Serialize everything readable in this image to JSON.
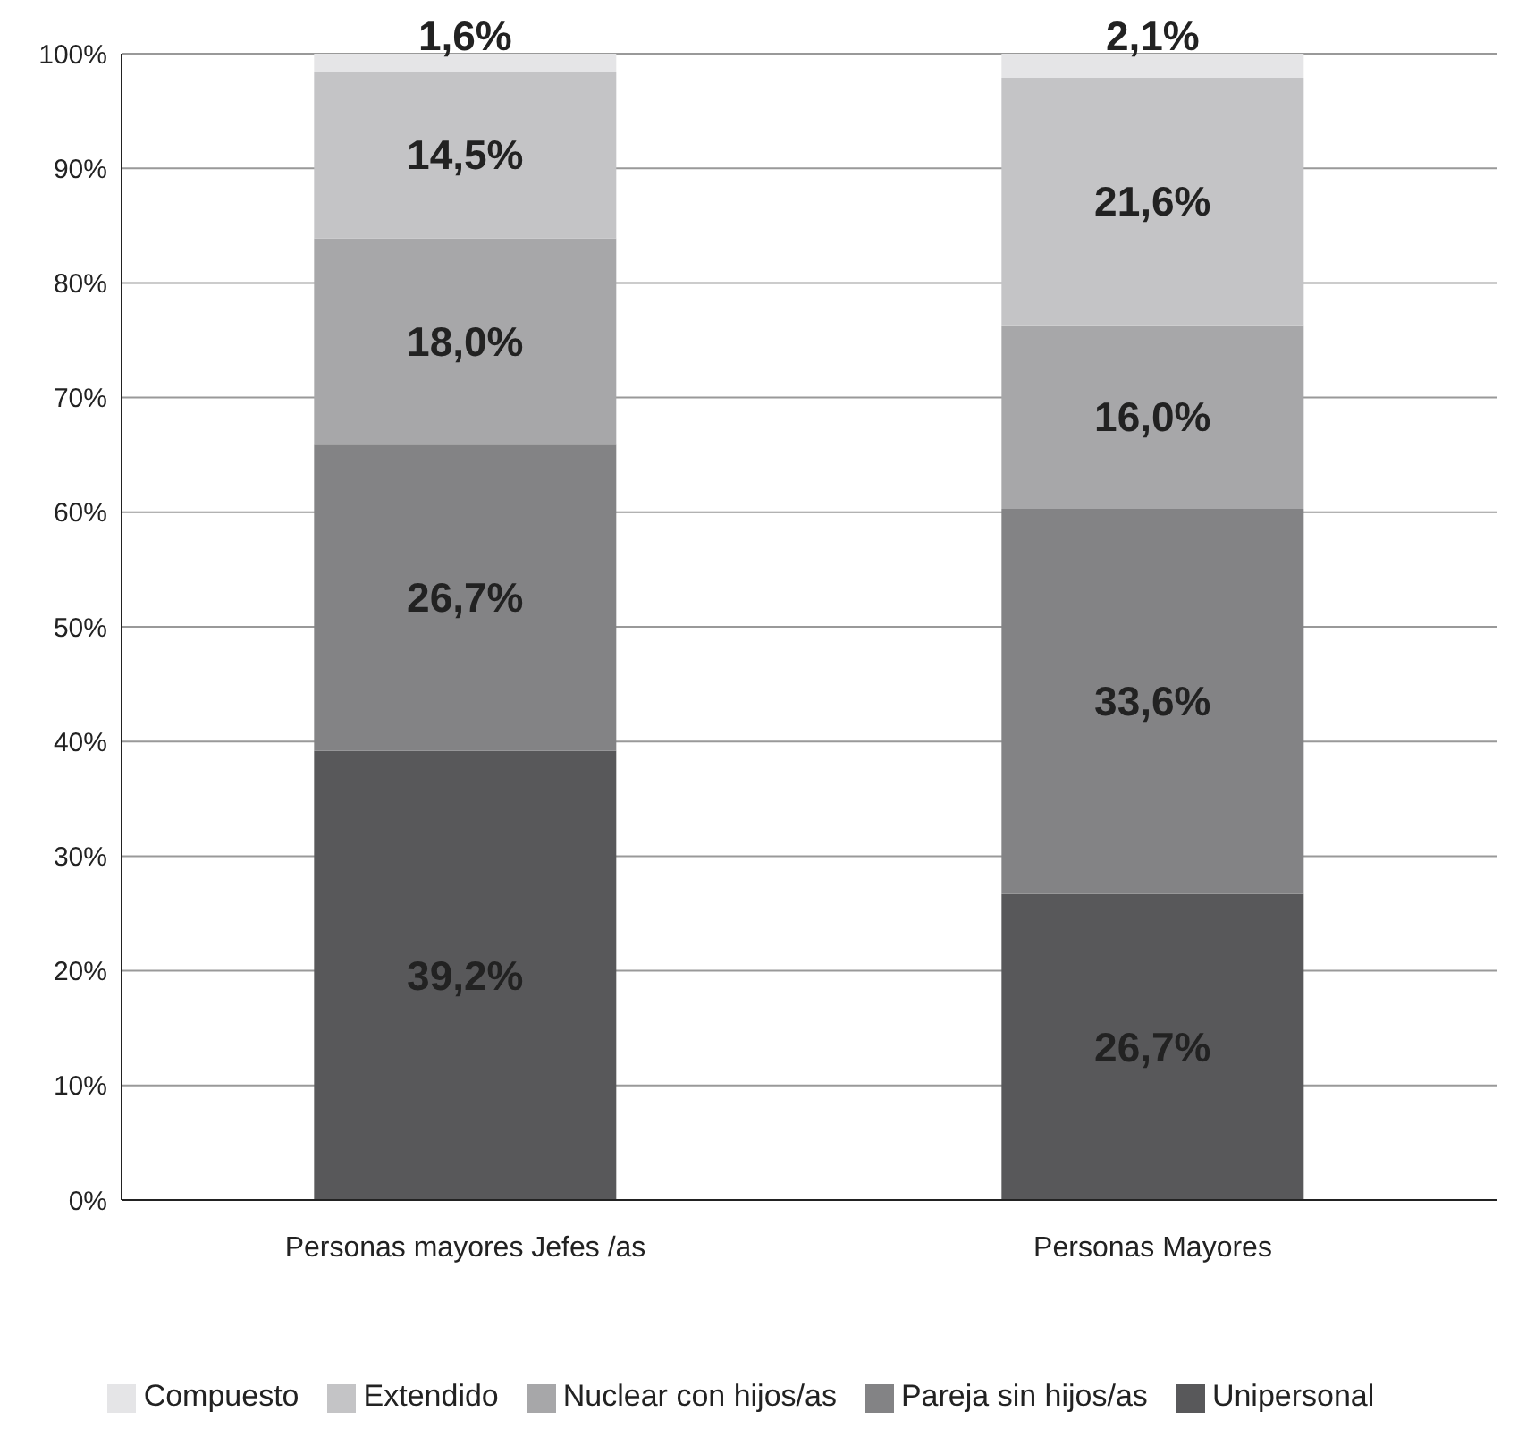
{
  "chart_data": {
    "type": "bar",
    "stacked": true,
    "categories": [
      "Personas mayores Jefes /as",
      "Personas Mayores"
    ],
    "series": [
      {
        "name": "Unipersonal",
        "color": "#58585a",
        "values": [
          39.2,
          26.7
        ],
        "value_labels": [
          "39,2%",
          "26,7%"
        ]
      },
      {
        "name": "Pareja sin hijos/as",
        "color": "#838385",
        "values": [
          26.7,
          33.6
        ],
        "value_labels": [
          "26,7%",
          "33,6%"
        ]
      },
      {
        "name": "Nuclear con hijos/as",
        "color": "#a7a7a9",
        "values": [
          18.0,
          16.0
        ],
        "value_labels": [
          "18,0%",
          "16,0%"
        ]
      },
      {
        "name": "Extendido",
        "color": "#c4c4c6",
        "values": [
          14.5,
          21.6
        ],
        "value_labels": [
          "14,5%",
          "21,6%"
        ]
      },
      {
        "name": "Compuesto",
        "color": "#e5e5e7",
        "values": [
          1.6,
          2.1
        ],
        "value_labels": [
          "1,6%",
          "2,1%"
        ]
      }
    ],
    "ylim": [
      0,
      100
    ],
    "yticks": [
      {
        "value": 0,
        "label": "0%"
      },
      {
        "value": 10,
        "label": "10%"
      },
      {
        "value": 20,
        "label": "20%"
      },
      {
        "value": 30,
        "label": "30%"
      },
      {
        "value": 40,
        "label": "40%"
      },
      {
        "value": 50,
        "label": "50%"
      },
      {
        "value": 60,
        "label": "60%"
      },
      {
        "value": 70,
        "label": "70%"
      },
      {
        "value": 80,
        "label": "80%"
      },
      {
        "value": 90,
        "label": "90%"
      },
      {
        "value": 100,
        "label": "100%"
      }
    ],
    "grid": "y",
    "legend": "bottom"
  }
}
